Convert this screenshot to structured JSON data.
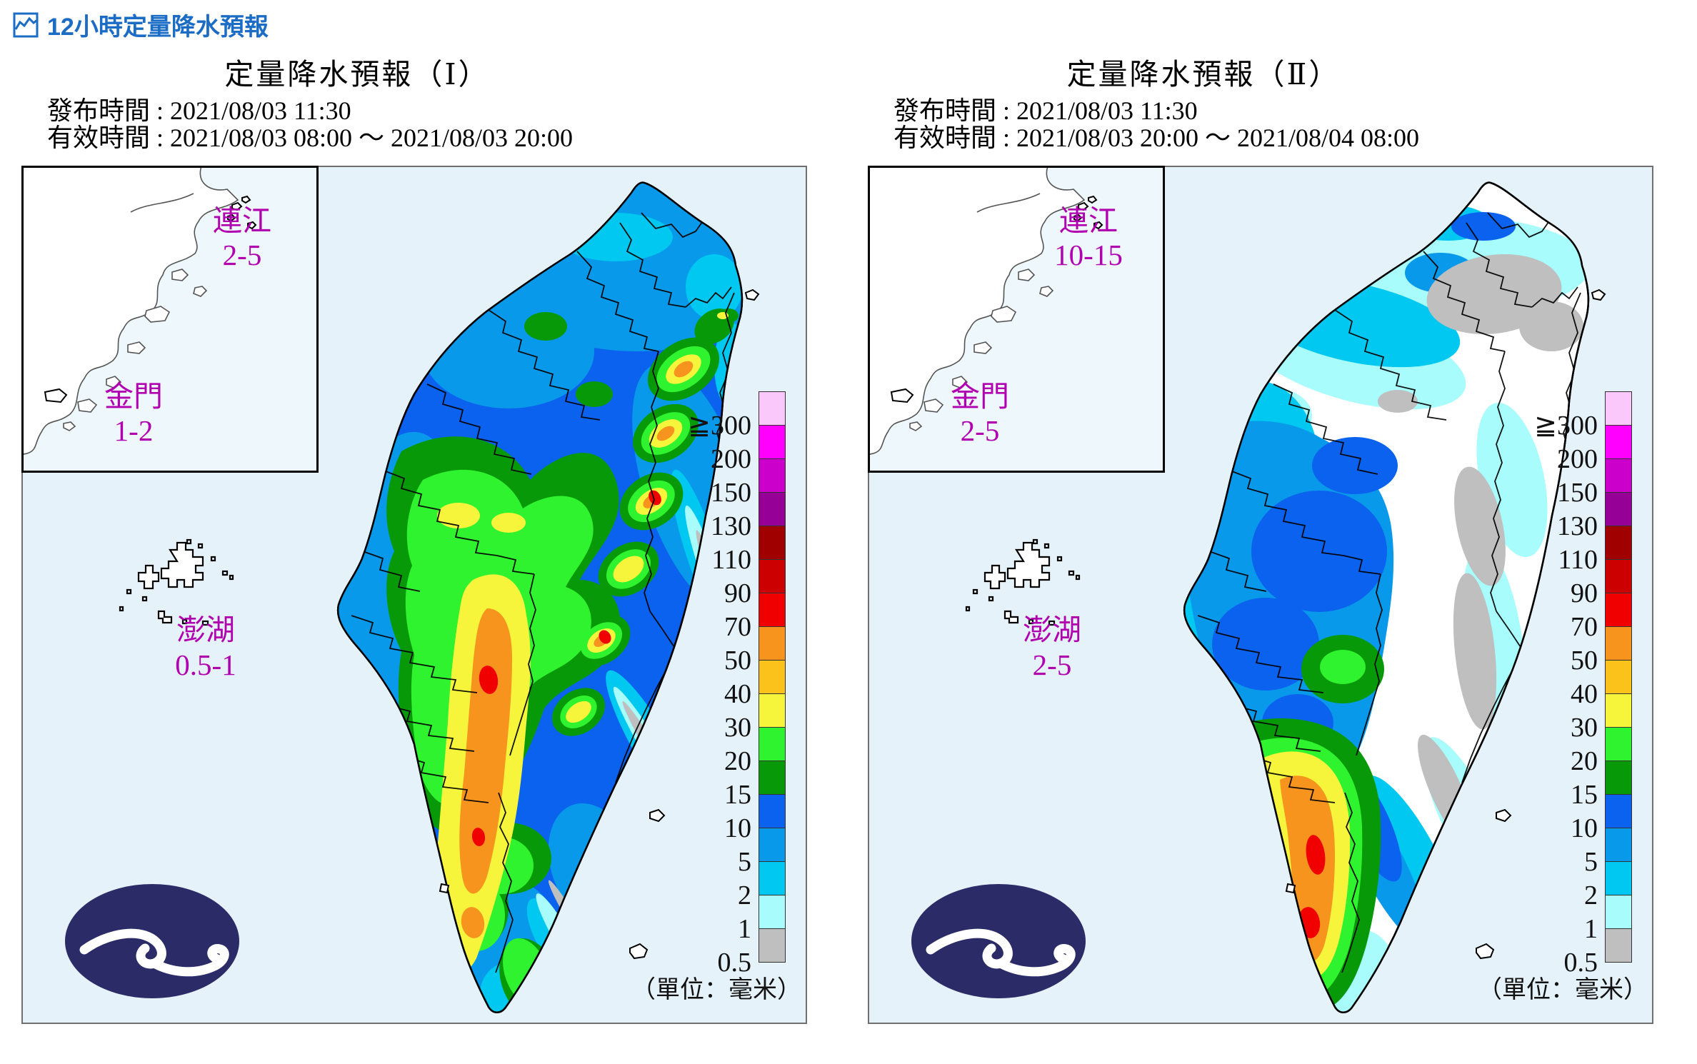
{
  "header": {
    "title": "12小時定量降水預報",
    "link_color": "#1b6cc4"
  },
  "panels": [
    {
      "title": "定量降水預報（Ⅰ）",
      "issued_line": "發布時間 : 2021/08/03 11:30",
      "valid_line": "有效時間 : 2021/08/03 08:00 ～ 2021/08/03 20:00",
      "islands": {
        "lienchiang": {
          "name": "連江",
          "value": "2-5"
        },
        "kinmen": {
          "name": "金門",
          "value": "1-2"
        },
        "penghu": {
          "name": "澎湖",
          "value": "0.5-1"
        }
      }
    },
    {
      "title": "定量降水預報（Ⅱ）",
      "issued_line": "發布時間 : 2021/08/03 11:30",
      "valid_line": "有效時間 : 2021/08/03 20:00 ～ 2021/08/04 08:00",
      "islands": {
        "lienchiang": {
          "name": "連江",
          "value": "10-15"
        },
        "kinmen": {
          "name": "金門",
          "value": "2-5"
        },
        "penghu": {
          "name": "澎湖",
          "value": "2-5"
        }
      }
    }
  ],
  "legend": {
    "unit": "（單位：毫米）",
    "segments": [
      {
        "label": "≧300",
        "color": "#fac8fa"
      },
      {
        "label": "200",
        "color": "#ff00ff"
      },
      {
        "label": "150",
        "color": "#cb00cb"
      },
      {
        "label": "130",
        "color": "#970097"
      },
      {
        "label": "110",
        "color": "#a00000"
      },
      {
        "label": "90",
        "color": "#cd0000"
      },
      {
        "label": "70",
        "color": "#f10000"
      },
      {
        "label": "50",
        "color": "#f7941e"
      },
      {
        "label": "40",
        "color": "#fbc21b"
      },
      {
        "label": "30",
        "color": "#f7f53b"
      },
      {
        "label": "20",
        "color": "#2ef32e"
      },
      {
        "label": "15",
        "color": "#089908"
      },
      {
        "label": "10",
        "color": "#0b62ee"
      },
      {
        "label": "5",
        "color": "#0999ea"
      },
      {
        "label": "2",
        "color": "#00c8f0"
      },
      {
        "label": "1",
        "color": "#a8fcfc"
      },
      {
        "label": "0.5",
        "color": "#bfbfbf"
      }
    ]
  },
  "colors": {
    "island_label": "#b000b0",
    "panel_sea": "#e6f2f9",
    "logo_navy": "#2b2b68"
  }
}
